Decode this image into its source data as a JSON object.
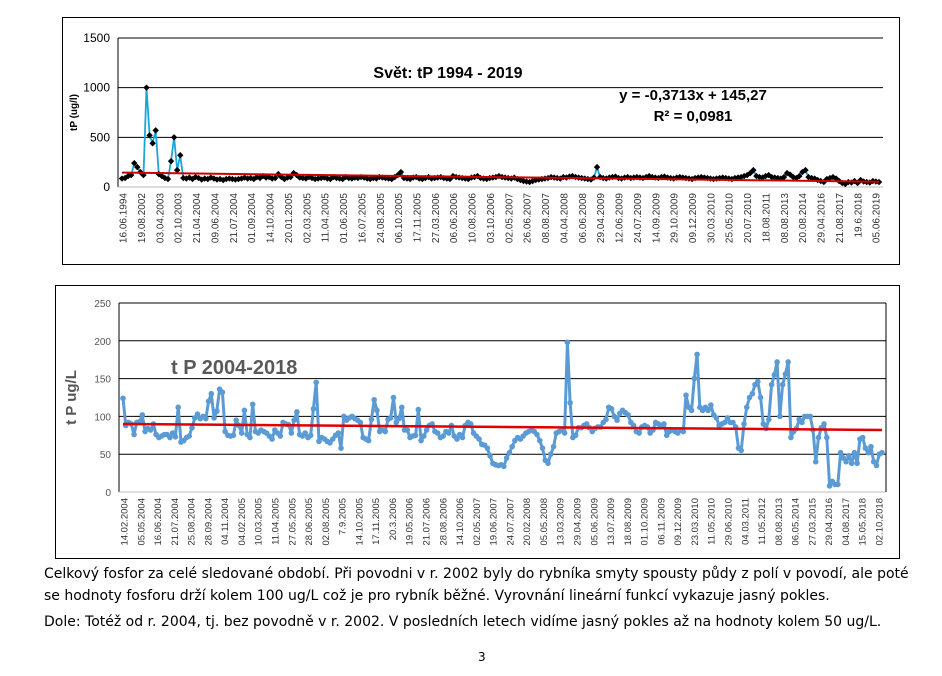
{
  "chart_data": [
    {
      "type": "line",
      "title": "Svět: tP 1994 - 2019",
      "xlabel": "",
      "ylabel": "tP (ug/l)",
      "ylim": [
        0,
        1500
      ],
      "yticks": [
        "0",
        "500",
        "1000",
        "1500"
      ],
      "grid": true,
      "trendline": {
        "equation": "y = -0,3713x + 145,27",
        "r2": "R² = 0,0981",
        "slope": -0.3713,
        "intercept": 145.27,
        "color": "#cc0000"
      },
      "series_color": "#1aa7d8",
      "marker_color": "#000000",
      "x_tick_labels": [
        "16.06.1994",
        "19.08.2002",
        "03.04.2003",
        "02.10.2003",
        "21.04.2004",
        "09.06.2004",
        "21.07.2004",
        "01.09.2004",
        "14.10.2004",
        "20.01.2005",
        "02.03.2005",
        "11.04.2005",
        "01.06.2005",
        "16.07.2005",
        "24.08.2005",
        "06.10.2005",
        "17.11.2005",
        "27.03.2006",
        "06.06.2006",
        "10.08.2006",
        "03.10.2006",
        "02.05.2007",
        "26.06.2007",
        "08.08.2007",
        "04.04.2008",
        "06.06.2008",
        "29.04.2009",
        "12.06.2009",
        "24.07.2009",
        "14.09.2009",
        "29.10.2009",
        "09.12.2009",
        "30.03.2010",
        "25.05.2010",
        "20.07.2010",
        "18.08.2011",
        "08.08.2013",
        "20.08.2014",
        "29.04.2016",
        "21.08.2017",
        "19.6.2018",
        "05.06.2019"
      ],
      "values": [
        85,
        90,
        110,
        120,
        240,
        200,
        150,
        120,
        1000,
        520,
        440,
        570,
        130,
        110,
        90,
        80,
        260,
        500,
        170,
        320,
        90,
        85,
        95,
        80,
        100,
        90,
        75,
        85,
        80,
        95,
        85,
        75,
        80,
        70,
        80,
        85,
        80,
        75,
        80,
        85,
        95,
        85,
        90,
        80,
        100,
        90,
        110,
        95,
        100,
        85,
        90,
        130,
        100,
        80,
        95,
        100,
        140,
        120,
        95,
        90,
        85,
        100,
        90,
        80,
        85,
        90,
        95,
        85,
        80,
        100,
        90,
        85,
        80,
        100,
        90,
        85,
        95,
        90,
        100,
        95,
        85,
        80,
        90,
        85,
        100,
        95,
        90,
        85,
        80,
        100,
        120,
        150,
        90,
        85,
        80,
        95,
        100,
        85,
        80,
        90,
        100,
        85,
        90,
        95,
        100,
        90,
        85,
        80,
        110,
        100,
        95,
        90,
        85,
        80,
        95,
        100,
        110,
        90,
        85,
        80,
        90,
        95,
        100,
        110,
        100,
        95,
        90,
        85,
        95,
        80,
        70,
        60,
        55,
        50,
        60,
        70,
        75,
        80,
        85,
        90,
        100,
        95,
        90,
        85,
        100,
        95,
        105,
        110,
        100,
        95,
        90,
        85,
        80,
        75,
        95,
        200,
        100,
        90,
        85,
        95,
        100,
        105,
        90,
        85,
        95,
        100,
        90,
        95,
        100,
        95,
        90,
        100,
        110,
        100,
        95,
        90,
        100,
        105,
        95,
        90,
        85,
        95,
        100,
        95,
        90,
        85,
        80,
        90,
        95,
        100,
        95,
        90,
        85,
        80,
        85,
        90,
        95,
        90,
        85,
        80,
        90,
        95,
        100,
        110,
        120,
        140,
        170,
        110,
        100,
        95,
        110,
        120,
        100,
        95,
        90,
        85,
        100,
        140,
        125,
        100,
        90,
        110,
        150,
        170,
        100,
        90,
        85,
        70,
        60,
        50,
        80,
        90,
        100,
        85,
        60,
        40,
        30,
        50,
        45,
        60,
        40,
        70,
        55,
        50,
        45,
        60,
        55,
        50
      ]
    },
    {
      "type": "line",
      "title": "t P 2004-2018",
      "xlabel": "",
      "ylabel": "t P ug/L",
      "ylim": [
        0,
        250
      ],
      "yticks": [
        "0",
        "50",
        "100",
        "150",
        "200",
        "250"
      ],
      "grid": true,
      "trendline": {
        "start": 90,
        "end": 82,
        "color": "#e00000"
      },
      "series_color": "#5b9bd5",
      "x_tick_labels": [
        "14.02.2004",
        "05.05.2004",
        "16.06.2004",
        "21.07.2004",
        "25.08.2004",
        "28.09.2004",
        "04.11.2004",
        "04.02.2005",
        "10.03.2005",
        "11.04.2005",
        "27.05.2005",
        "28.06.2005",
        "02.08.2005",
        "7.9.2005",
        "14.10.2005",
        "17.11.2005",
        "20.3.2006",
        "19.05.2006",
        "21.07.2006",
        "28.08.2006",
        "14.10.2006",
        "02.05.2007",
        "19.06.2007",
        "24.07.2007",
        "20.02.2008",
        "05.05.2008",
        "13.03.2009",
        "29.04.2009",
        "05.06.2009",
        "13.07.2009",
        "18.08.2009",
        "01.10.2009",
        "06.11.2009",
        "09.12.2009",
        "23.03.2010",
        "11.05.2010",
        "29.06.2010",
        "04.03.2011",
        "11.05.2012",
        "08.08.2013",
        "06.05.2014",
        "27.03.2015",
        "29.04.2016",
        "04.08.2017",
        "15.05.2018",
        "02.10.2018"
      ],
      "values": [
        124,
        88,
        92,
        90,
        76,
        92,
        93,
        102,
        80,
        84,
        82,
        90,
        76,
        72,
        74,
        76,
        76,
        72,
        78,
        73,
        112,
        66,
        68,
        72,
        74,
        85,
        98,
        103,
        97,
        100,
        97,
        120,
        130,
        98,
        107,
        136,
        132,
        80,
        75,
        74,
        75,
        95,
        88,
        78,
        108,
        76,
        72,
        116,
        80,
        78,
        82,
        80,
        78,
        74,
        70,
        82,
        78,
        74,
        92,
        90,
        89,
        78,
        95,
        106,
        76,
        74,
        78,
        72,
        75,
        110,
        145,
        67,
        72,
        70,
        67,
        65,
        70,
        75,
        78,
        58,
        100,
        95,
        98,
        100,
        97,
        95,
        92,
        72,
        70,
        68,
        96,
        122,
        108,
        80,
        82,
        80,
        96,
        98,
        125,
        92,
        97,
        112,
        82,
        82,
        72,
        74,
        75,
        109,
        68,
        74,
        82,
        88,
        90,
        80,
        78,
        72,
        74,
        80,
        78,
        88,
        74,
        70,
        76,
        72,
        88,
        92,
        90,
        78,
        74,
        70,
        63,
        62,
        58,
        48,
        38,
        36,
        35,
        36,
        34,
        45,
        52,
        60,
        68,
        72,
        70,
        74,
        78,
        80,
        82,
        80,
        76,
        68,
        58,
        42,
        38,
        50,
        60,
        78,
        80,
        82,
        78,
        198,
        118,
        72,
        75,
        85,
        85,
        88,
        90,
        85,
        80,
        84,
        86,
        86,
        92,
        96,
        112,
        110,
        100,
        95,
        104,
        108,
        105,
        102,
        92,
        88,
        80,
        78,
        86,
        88,
        86,
        78,
        82,
        92,
        90,
        88,
        90,
        75,
        80,
        82,
        80,
        78,
        82,
        80,
        128,
        112,
        108,
        150,
        182,
        112,
        108,
        112,
        108,
        115,
        102,
        98,
        88,
        90,
        92,
        98,
        92,
        92,
        86,
        58,
        55,
        90,
        112,
        125,
        130,
        142,
        146,
        125,
        90,
        84,
        96,
        142,
        155,
        172,
        100,
        142,
        156,
        172,
        72,
        80,
        84,
        96,
        92,
        100,
        100,
        100,
        82,
        40,
        72,
        85,
        90,
        72,
        8,
        14,
        10,
        10,
        52,
        45,
        40,
        48,
        38,
        52,
        38,
        70,
        72,
        58,
        52,
        60,
        40,
        35,
        50,
        52
      ]
    }
  ],
  "captions": {
    "paragraph1_line1": "Celkový fosfor za celé sledované období. Při povodni v r. 2002 byly do rybníka smyty spousty půdy z polí v povodí, ale poté",
    "paragraph1_line2": "se hodnoty fosforu drží kolem 100 ug/L což je pro rybník běžné. Vyrovnání lineární funkcí vykazuje jasný pokles.",
    "paragraph2": "Dole: Totéž od r. 2004, tj. bez povodně v r. 2002. V posledních letech vidíme jasný pokles až na hodnoty kolem 50 ug/L."
  },
  "page_number": "3"
}
